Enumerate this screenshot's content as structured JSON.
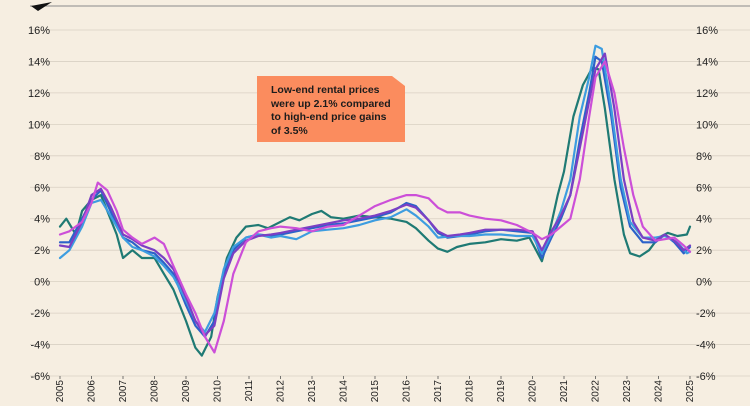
{
  "chart_data": {
    "type": "line",
    "title": "",
    "xlabel": "",
    "ylabel": "",
    "x_ticks": [
      "2005",
      "2006",
      "2007",
      "2008",
      "2009",
      "2010",
      "2011",
      "2012",
      "2013",
      "2014",
      "2015",
      "2016",
      "2017",
      "2018",
      "2019",
      "2020",
      "2021",
      "2022",
      "2023",
      "2024",
      "2025"
    ],
    "y_ticks": [
      "16%",
      "14%",
      "12%",
      "10%",
      "8%",
      "6%",
      "4%",
      "2%",
      "0%",
      "-2%",
      "-4%",
      "-6%"
    ],
    "xlim": [
      2005,
      2025
    ],
    "ylim": [
      -6,
      16
    ],
    "grid": "horizontal",
    "annotation": "Low-end rental prices were up 2.1% compared to high-end price gains of 3.5%",
    "series": [
      {
        "color": "#1f7a74",
        "points": [
          [
            2005,
            3.5
          ],
          [
            2005.2,
            4.0
          ],
          [
            2005.5,
            3.0
          ],
          [
            2005.7,
            4.5
          ],
          [
            2006.0,
            5.2
          ],
          [
            2006.3,
            5.5
          ],
          [
            2006.5,
            4.5
          ],
          [
            2006.8,
            3.0
          ],
          [
            2007.0,
            1.5
          ],
          [
            2007.3,
            2.0
          ],
          [
            2007.6,
            1.5
          ],
          [
            2008.0,
            1.5
          ],
          [
            2008.3,
            0.5
          ],
          [
            2008.6,
            -0.5
          ],
          [
            2009.0,
            -2.5
          ],
          [
            2009.3,
            -4.2
          ],
          [
            2009.5,
            -4.7
          ],
          [
            2009.8,
            -3.5
          ],
          [
            2010.0,
            -1.0
          ],
          [
            2010.3,
            1.5
          ],
          [
            2010.6,
            2.8
          ],
          [
            2010.9,
            3.5
          ],
          [
            2011.3,
            3.6
          ],
          [
            2011.6,
            3.4
          ],
          [
            2012.0,
            3.8
          ],
          [
            2012.3,
            4.1
          ],
          [
            2012.6,
            3.9
          ],
          [
            2013.0,
            4.3
          ],
          [
            2013.3,
            4.5
          ],
          [
            2013.6,
            4.1
          ],
          [
            2014.0,
            4.0
          ],
          [
            2014.5,
            4.2
          ],
          [
            2015.0,
            4.1
          ],
          [
            2015.5,
            4.0
          ],
          [
            2016.0,
            3.8
          ],
          [
            2016.3,
            3.4
          ],
          [
            2016.7,
            2.6
          ],
          [
            2017.0,
            2.1
          ],
          [
            2017.3,
            1.9
          ],
          [
            2017.6,
            2.2
          ],
          [
            2018.0,
            2.4
          ],
          [
            2018.5,
            2.5
          ],
          [
            2019.0,
            2.7
          ],
          [
            2019.5,
            2.6
          ],
          [
            2019.9,
            2.8
          ],
          [
            2020.3,
            1.3
          ],
          [
            2020.5,
            2.8
          ],
          [
            2020.8,
            5.5
          ],
          [
            2021.0,
            7.0
          ],
          [
            2021.3,
            10.5
          ],
          [
            2021.6,
            12.5
          ],
          [
            2021.9,
            13.6
          ],
          [
            2022.1,
            13.5
          ],
          [
            2022.3,
            11.0
          ],
          [
            2022.6,
            6.5
          ],
          [
            2022.9,
            3.0
          ],
          [
            2023.1,
            1.8
          ],
          [
            2023.4,
            1.6
          ],
          [
            2023.7,
            2.0
          ],
          [
            2024.0,
            2.8
          ],
          [
            2024.3,
            3.1
          ],
          [
            2024.6,
            2.9
          ],
          [
            2024.9,
            3.0
          ],
          [
            2025,
            3.5
          ]
        ]
      },
      {
        "color": "#2c62c9",
        "points": [
          [
            2005,
            2.5
          ],
          [
            2005.3,
            2.5
          ],
          [
            2005.7,
            4.0
          ],
          [
            2006.0,
            5.2
          ],
          [
            2006.3,
            5.8
          ],
          [
            2006.6,
            4.5
          ],
          [
            2007.0,
            2.8
          ],
          [
            2007.3,
            2.5
          ],
          [
            2007.6,
            2.0
          ],
          [
            2008.0,
            1.8
          ],
          [
            2008.3,
            1.2
          ],
          [
            2008.6,
            0.5
          ],
          [
            2009.0,
            -1.5
          ],
          [
            2009.3,
            -2.8
          ],
          [
            2009.6,
            -3.5
          ],
          [
            2009.9,
            -2.5
          ],
          [
            2010.2,
            0.5
          ],
          [
            2010.5,
            2.0
          ],
          [
            2010.9,
            2.8
          ],
          [
            2011.3,
            3.0
          ],
          [
            2011.7,
            2.9
          ],
          [
            2012.0,
            3.0
          ],
          [
            2012.5,
            3.2
          ],
          [
            2013.0,
            3.4
          ],
          [
            2013.5,
            3.6
          ],
          [
            2014.0,
            3.7
          ],
          [
            2014.5,
            3.9
          ],
          [
            2015.0,
            4.1
          ],
          [
            2015.5,
            4.4
          ],
          [
            2016.0,
            5.0
          ],
          [
            2016.3,
            4.8
          ],
          [
            2016.7,
            3.9
          ],
          [
            2017.0,
            3.1
          ],
          [
            2017.3,
            2.8
          ],
          [
            2017.7,
            2.9
          ],
          [
            2018.0,
            3.0
          ],
          [
            2018.5,
            3.2
          ],
          [
            2019.0,
            3.3
          ],
          [
            2019.5,
            3.2
          ],
          [
            2020.0,
            3.1
          ],
          [
            2020.3,
            1.5
          ],
          [
            2020.6,
            2.8
          ],
          [
            2020.9,
            4.0
          ],
          [
            2021.2,
            5.5
          ],
          [
            2021.5,
            9.0
          ],
          [
            2021.8,
            12.0
          ],
          [
            2022.0,
            14.3
          ],
          [
            2022.2,
            14.0
          ],
          [
            2022.5,
            10.5
          ],
          [
            2022.8,
            6.0
          ],
          [
            2023.1,
            3.5
          ],
          [
            2023.5,
            2.5
          ],
          [
            2023.9,
            2.5
          ],
          [
            2024.2,
            3.0
          ],
          [
            2024.5,
            2.5
          ],
          [
            2024.8,
            1.8
          ],
          [
            2025,
            2.2
          ]
        ]
      },
      {
        "color": "#3d9de0",
        "points": [
          [
            2005,
            1.5
          ],
          [
            2005.3,
            2.0
          ],
          [
            2005.7,
            3.5
          ],
          [
            2006.0,
            5.0
          ],
          [
            2006.3,
            5.2
          ],
          [
            2006.6,
            4.2
          ],
          [
            2007.0,
            2.8
          ],
          [
            2007.3,
            2.2
          ],
          [
            2007.6,
            2.0
          ],
          [
            2008.0,
            1.6
          ],
          [
            2008.3,
            1.0
          ],
          [
            2008.6,
            0.3
          ],
          [
            2009.0,
            -1.2
          ],
          [
            2009.3,
            -2.5
          ],
          [
            2009.6,
            -3.2
          ],
          [
            2009.9,
            -2.0
          ],
          [
            2010.2,
            0.8
          ],
          [
            2010.5,
            2.2
          ],
          [
            2010.9,
            2.8
          ],
          [
            2011.3,
            3.0
          ],
          [
            2011.7,
            2.8
          ],
          [
            2012.0,
            2.9
          ],
          [
            2012.5,
            2.7
          ],
          [
            2013.0,
            3.2
          ],
          [
            2013.5,
            3.3
          ],
          [
            2014.0,
            3.4
          ],
          [
            2014.5,
            3.6
          ],
          [
            2015.0,
            3.9
          ],
          [
            2015.5,
            4.1
          ],
          [
            2016.0,
            4.6
          ],
          [
            2016.3,
            4.2
          ],
          [
            2016.7,
            3.5
          ],
          [
            2017.0,
            2.8
          ],
          [
            2017.5,
            2.9
          ],
          [
            2018.0,
            2.9
          ],
          [
            2018.5,
            3.0
          ],
          [
            2019.0,
            3.0
          ],
          [
            2019.5,
            2.9
          ],
          [
            2020.0,
            2.9
          ],
          [
            2020.3,
            1.8
          ],
          [
            2020.6,
            3.0
          ],
          [
            2020.9,
            4.5
          ],
          [
            2021.2,
            6.5
          ],
          [
            2021.5,
            10.5
          ],
          [
            2021.8,
            13.0
          ],
          [
            2022.0,
            15.0
          ],
          [
            2022.2,
            14.8
          ],
          [
            2022.5,
            11.0
          ],
          [
            2022.8,
            6.5
          ],
          [
            2023.1,
            3.8
          ],
          [
            2023.5,
            2.8
          ],
          [
            2023.9,
            2.8
          ],
          [
            2024.2,
            2.9
          ],
          [
            2024.6,
            2.5
          ],
          [
            2024.9,
            1.8
          ],
          [
            2025,
            1.9
          ]
        ]
      },
      {
        "color": "#7b3fc4",
        "points": [
          [
            2005,
            2.3
          ],
          [
            2005.3,
            2.2
          ],
          [
            2005.7,
            3.8
          ],
          [
            2006.0,
            5.5
          ],
          [
            2006.3,
            5.9
          ],
          [
            2006.6,
            4.8
          ],
          [
            2007.0,
            3.0
          ],
          [
            2007.3,
            2.7
          ],
          [
            2007.6,
            2.3
          ],
          [
            2008.0,
            2.0
          ],
          [
            2008.3,
            1.5
          ],
          [
            2008.6,
            0.8
          ],
          [
            2009.0,
            -1.0
          ],
          [
            2009.3,
            -2.5
          ],
          [
            2009.6,
            -3.4
          ],
          [
            2009.9,
            -2.8
          ],
          [
            2010.2,
            0.2
          ],
          [
            2010.5,
            1.8
          ],
          [
            2010.9,
            2.6
          ],
          [
            2011.3,
            2.9
          ],
          [
            2011.7,
            3.0
          ],
          [
            2012.0,
            3.1
          ],
          [
            2012.5,
            3.3
          ],
          [
            2013.0,
            3.5
          ],
          [
            2013.5,
            3.7
          ],
          [
            2014.0,
            3.9
          ],
          [
            2014.5,
            4.0
          ],
          [
            2015.0,
            4.2
          ],
          [
            2015.5,
            4.5
          ],
          [
            2016.0,
            4.9
          ],
          [
            2016.3,
            4.7
          ],
          [
            2016.7,
            3.9
          ],
          [
            2017.0,
            3.2
          ],
          [
            2017.3,
            2.9
          ],
          [
            2017.7,
            3.0
          ],
          [
            2018.0,
            3.1
          ],
          [
            2018.5,
            3.3
          ],
          [
            2019.0,
            3.3
          ],
          [
            2019.5,
            3.3
          ],
          [
            2020.0,
            3.2
          ],
          [
            2020.3,
            2.0
          ],
          [
            2020.6,
            3.2
          ],
          [
            2020.9,
            4.2
          ],
          [
            2021.2,
            5.5
          ],
          [
            2021.5,
            8.5
          ],
          [
            2021.8,
            11.5
          ],
          [
            2022.0,
            13.5
          ],
          [
            2022.3,
            14.5
          ],
          [
            2022.6,
            11.0
          ],
          [
            2022.9,
            6.5
          ],
          [
            2023.2,
            3.8
          ],
          [
            2023.5,
            2.8
          ],
          [
            2023.9,
            2.6
          ],
          [
            2024.2,
            3.0
          ],
          [
            2024.5,
            2.6
          ],
          [
            2024.8,
            2.0
          ],
          [
            2025,
            2.3
          ]
        ]
      },
      {
        "color": "#cc4fd8",
        "points": [
          [
            2005,
            3.0
          ],
          [
            2005.3,
            3.2
          ],
          [
            2005.7,
            3.8
          ],
          [
            2006.0,
            5.0
          ],
          [
            2006.2,
            6.3
          ],
          [
            2006.5,
            5.8
          ],
          [
            2006.8,
            4.5
          ],
          [
            2007.0,
            3.3
          ],
          [
            2007.3,
            2.8
          ],
          [
            2007.6,
            2.4
          ],
          [
            2008.0,
            2.8
          ],
          [
            2008.3,
            2.4
          ],
          [
            2008.6,
            1.0
          ],
          [
            2009.0,
            -0.8
          ],
          [
            2009.3,
            -2.0
          ],
          [
            2009.6,
            -3.5
          ],
          [
            2009.9,
            -4.5
          ],
          [
            2010.2,
            -2.5
          ],
          [
            2010.5,
            0.5
          ],
          [
            2010.9,
            2.5
          ],
          [
            2011.3,
            3.2
          ],
          [
            2011.7,
            3.4
          ],
          [
            2012.0,
            3.5
          ],
          [
            2012.5,
            3.4
          ],
          [
            2013.0,
            3.2
          ],
          [
            2013.5,
            3.5
          ],
          [
            2014.0,
            3.6
          ],
          [
            2014.5,
            4.2
          ],
          [
            2015.0,
            4.8
          ],
          [
            2015.5,
            5.2
          ],
          [
            2016.0,
            5.5
          ],
          [
            2016.3,
            5.5
          ],
          [
            2016.7,
            5.3
          ],
          [
            2017.0,
            4.7
          ],
          [
            2017.3,
            4.4
          ],
          [
            2017.7,
            4.4
          ],
          [
            2018.0,
            4.2
          ],
          [
            2018.5,
            4.0
          ],
          [
            2019.0,
            3.9
          ],
          [
            2019.5,
            3.6
          ],
          [
            2020.0,
            3.1
          ],
          [
            2020.3,
            2.7
          ],
          [
            2020.6,
            3.0
          ],
          [
            2020.9,
            3.5
          ],
          [
            2021.2,
            4.0
          ],
          [
            2021.5,
            6.5
          ],
          [
            2021.8,
            10.5
          ],
          [
            2022.0,
            13.0
          ],
          [
            2022.3,
            14.0
          ],
          [
            2022.6,
            12.0
          ],
          [
            2022.9,
            8.5
          ],
          [
            2023.2,
            5.5
          ],
          [
            2023.5,
            3.5
          ],
          [
            2023.9,
            2.6
          ],
          [
            2024.2,
            2.7
          ],
          [
            2024.5,
            2.8
          ],
          [
            2024.8,
            2.3
          ],
          [
            2025,
            1.9
          ]
        ]
      }
    ]
  }
}
